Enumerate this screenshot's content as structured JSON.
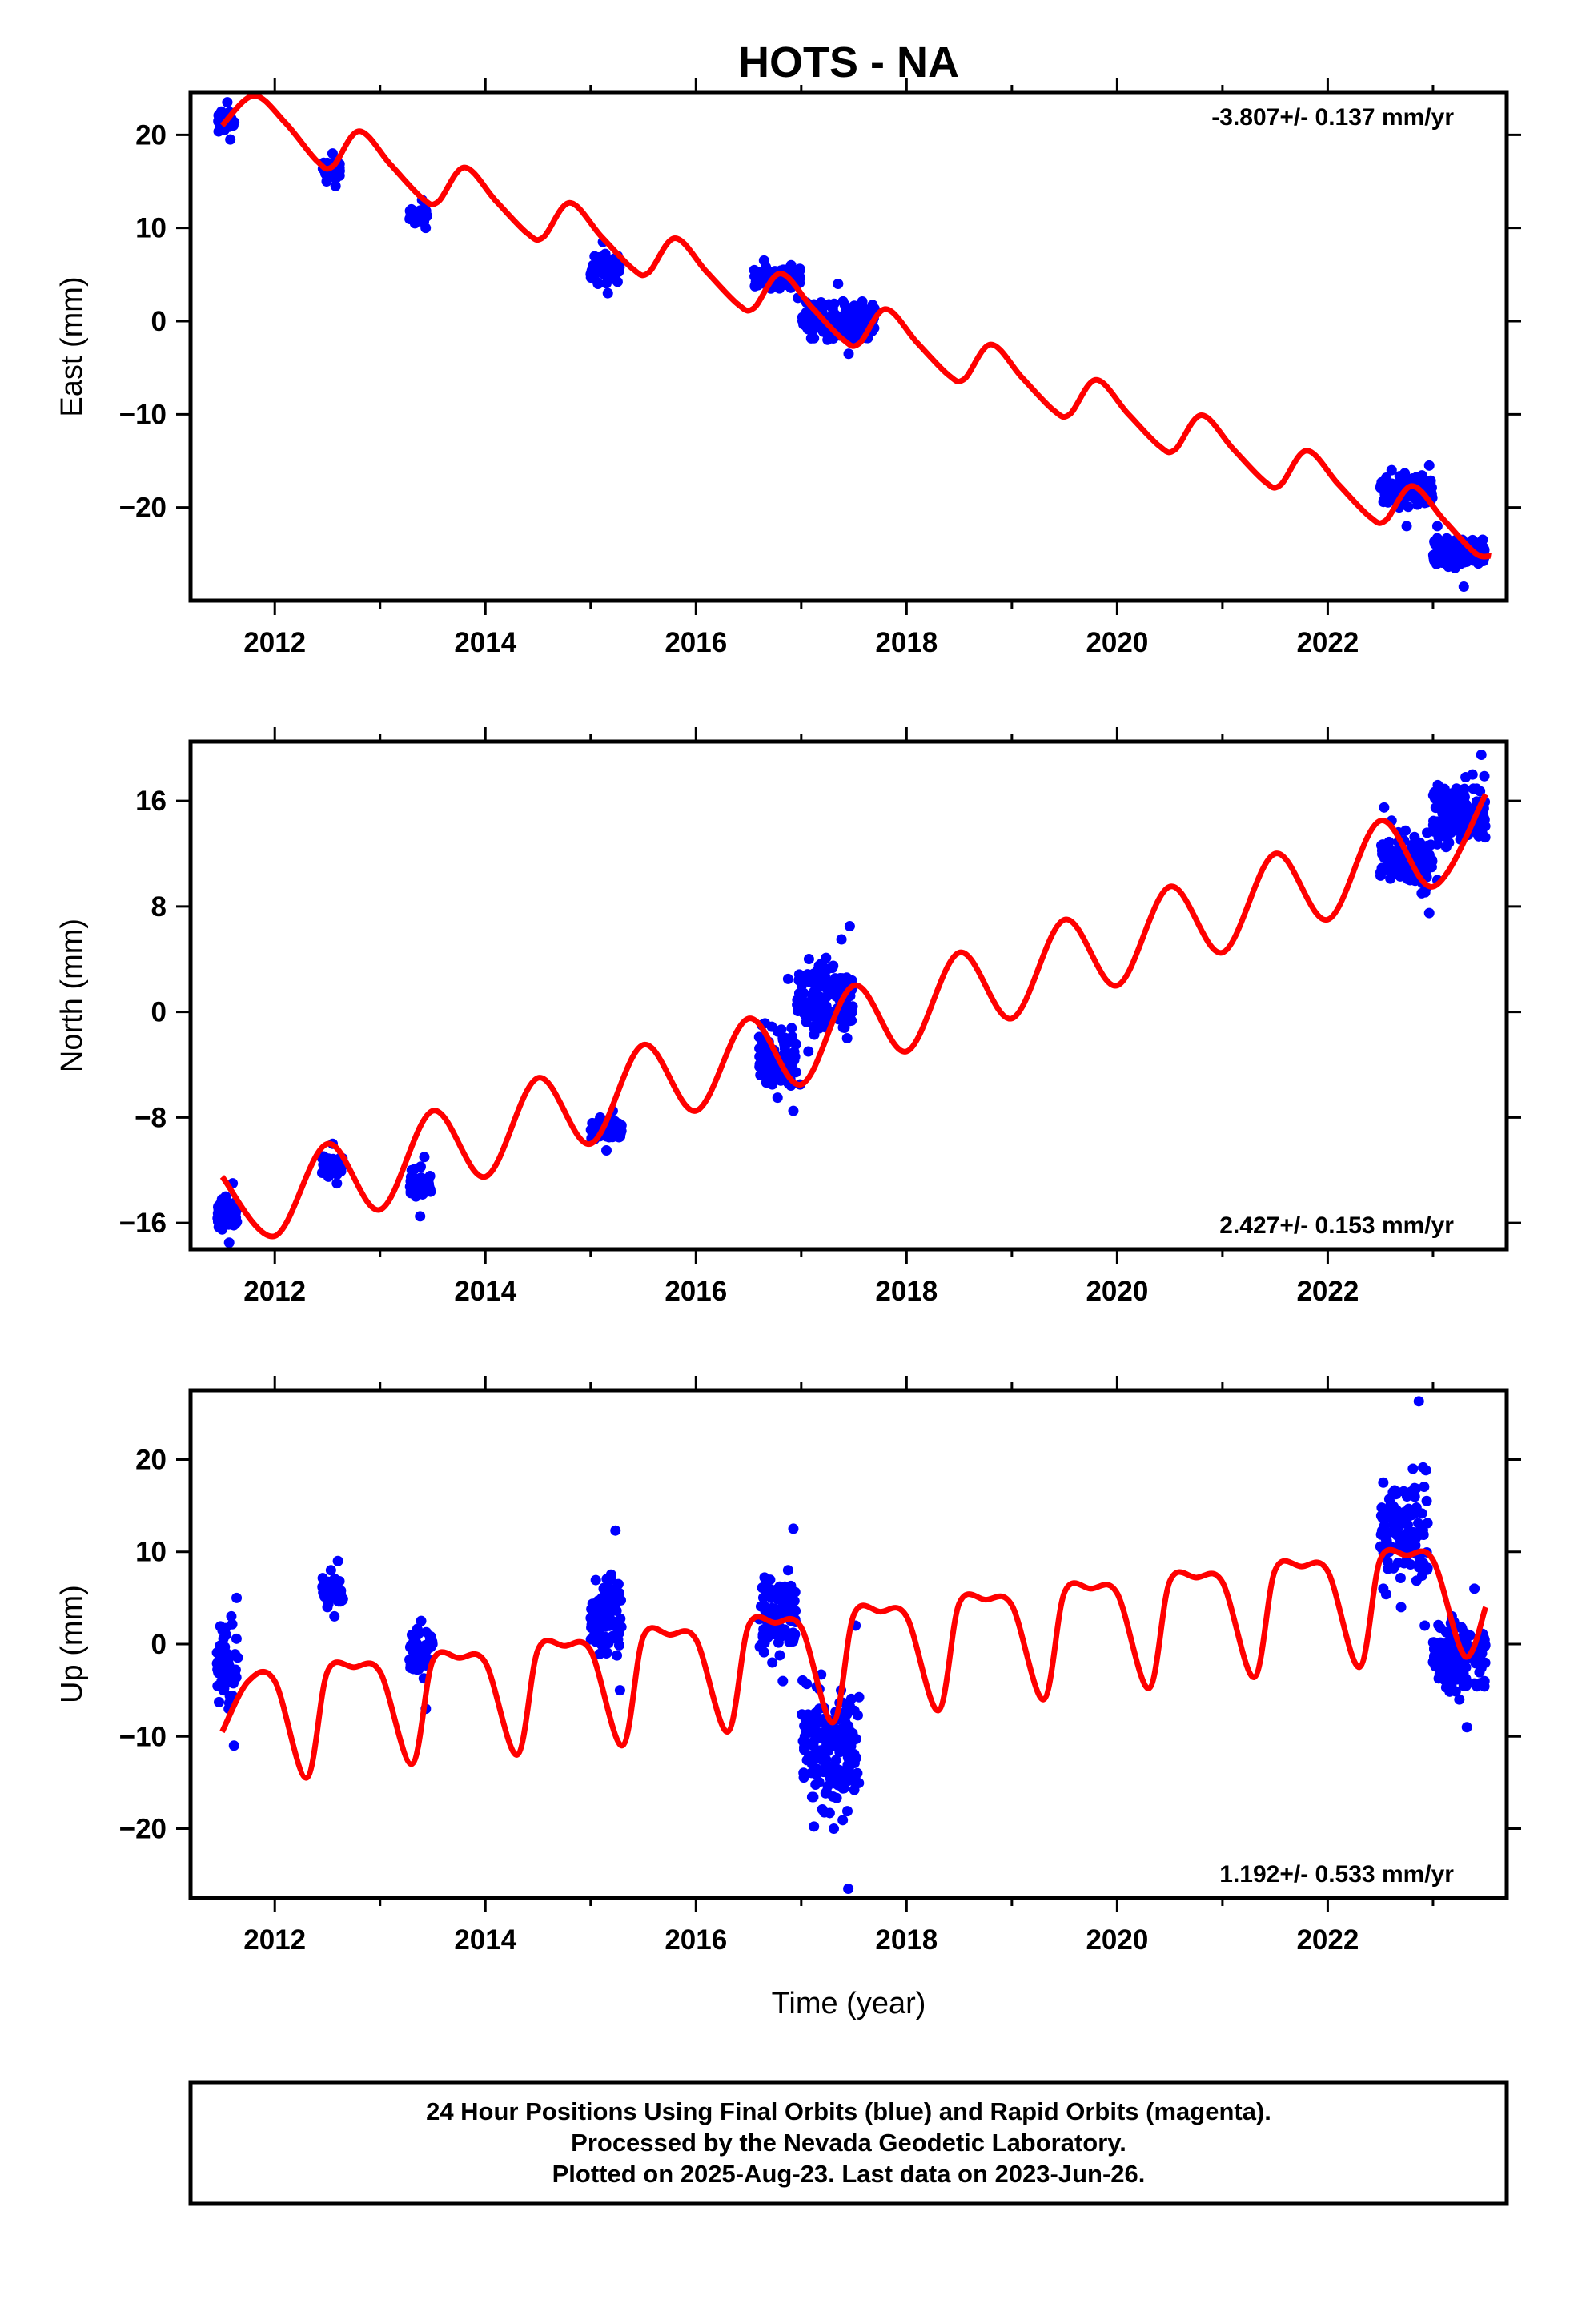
{
  "title": "HOTS - NA",
  "caption": {
    "line1": "24 Hour Positions Using Final Orbits (blue) and Rapid Orbits (magenta).",
    "line2": "Processed by the Nevada Geodetic Laboratory.",
    "line3": "Plotted on 2025-Aug-23. Last data on 2023-Jun-26."
  },
  "colors": {
    "observations": "#0000ff",
    "model": "#ff0000",
    "frame": "#000000"
  },
  "chart_data": [
    {
      "type": "scatter",
      "title": "HOTS - NA",
      "ylabel": "East (mm)",
      "xlabel": "",
      "xlim": [
        2011.2,
        2023.7
      ],
      "ylim": [
        -30.0,
        24.5
      ],
      "xticks": [
        2012,
        2014,
        2016,
        2018,
        2020,
        2022
      ],
      "yticks": [
        20,
        10,
        0,
        -10,
        -20
      ],
      "rate_label": "-3.807+/- 0.137 mm/yr",
      "rate_position": "top-right",
      "series": [
        {
          "name": "Final Orbits (blue)",
          "kind": "points",
          "clusters": [
            {
              "t": [
                2011.45,
                2011.62
              ],
              "values": [
                21.5,
                22.5,
                20.5,
                23.5,
                19.5,
                21.0
              ]
            },
            {
              "t": [
                2012.45,
                2012.62
              ],
              "values": [
                17.0,
                15.0,
                16.5,
                18.0,
                14.5,
                16.0
              ]
            },
            {
              "t": [
                2013.28,
                2013.45
              ],
              "values": [
                12.0,
                10.5,
                11.5,
                13.0,
                10.0
              ]
            },
            {
              "t": [
                2015.0,
                2015.28
              ],
              "values": [
                6.0,
                4.0,
                8.5,
                3.0,
                5.5,
                7.0
              ]
            },
            {
              "t": [
                2016.55,
                2017.0
              ],
              "values": [
                5.0,
                6.5,
                3.5,
                4.0,
                5.5,
                6.0,
                2.5
              ]
            },
            {
              "t": [
                2017.0,
                2017.7
              ],
              "values": [
                2.0,
                0.0,
                -2.0,
                4.0,
                -3.5,
                1.0,
                -1.0
              ]
            },
            {
              "t": [
                2022.5,
                2023.0
              ],
              "values": [
                -18.0,
                -16.0,
                -20.0,
                -22.0,
                -19.0,
                -17.5,
                -15.5
              ]
            },
            {
              "t": [
                2023.0,
                2023.5
              ],
              "values": [
                -22.0,
                -24.5,
                -26.5,
                -28.5,
                -23.5,
                -25.0
              ]
            }
          ]
        },
        {
          "name": "Model",
          "kind": "line",
          "x": [
            2011.5,
            2011.8,
            2012.1,
            2012.4,
            2012.55,
            2012.8,
            2013.1,
            2013.4,
            2013.55,
            2013.8,
            2014.1,
            2014.4,
            2014.55,
            2014.8,
            2015.1,
            2015.4,
            2015.55,
            2015.8,
            2016.1,
            2016.4,
            2016.55,
            2016.8,
            2017.1,
            2017.4,
            2017.55,
            2017.8,
            2018.1,
            2018.4,
            2018.55,
            2018.8,
            2019.1,
            2019.4,
            2019.55,
            2019.8,
            2020.1,
            2020.4,
            2020.55,
            2020.8,
            2021.1,
            2021.4,
            2021.55,
            2021.8,
            2022.1,
            2022.4,
            2022.55,
            2022.8,
            2023.1,
            2023.4,
            2023.55
          ],
          "values": [
            21.0,
            24.2,
            21.3,
            17.2,
            16.6,
            20.4,
            16.8,
            13.2,
            12.8,
            16.5,
            12.9,
            9.4,
            9.0,
            12.7,
            9.1,
            5.6,
            5.2,
            8.9,
            5.3,
            1.8,
            1.4,
            5.1,
            1.5,
            -2.0,
            -2.4,
            1.3,
            -2.3,
            -5.8,
            -6.2,
            -2.5,
            -6.1,
            -9.6,
            -10.0,
            -6.3,
            -9.9,
            -13.4,
            -13.8,
            -10.1,
            -13.7,
            -17.2,
            -17.6,
            -13.9,
            -17.5,
            -21.0,
            -21.4,
            -17.7,
            -21.3,
            -24.9,
            -25.2
          ]
        }
      ]
    },
    {
      "type": "scatter",
      "ylabel": "North (mm)",
      "xlabel": "",
      "xlim": [
        2011.2,
        2023.7
      ],
      "ylim": [
        -18.0,
        20.5
      ],
      "xticks": [
        2012,
        2014,
        2016,
        2018,
        2020,
        2022
      ],
      "yticks": [
        16,
        8,
        0,
        -8,
        -16
      ],
      "rate_label": "2.427+/- 0.153 mm/yr",
      "rate_position": "bottom-right",
      "series": [
        {
          "name": "Final Orbits (blue)",
          "kind": "points",
          "clusters": [
            {
              "t": [
                2011.45,
                2011.65
              ],
              "values": [
                -15.0,
                -16.5,
                -14.0,
                -17.5,
                -13.0,
                -16.0
              ]
            },
            {
              "t": [
                2012.45,
                2012.65
              ],
              "values": [
                -11.0,
                -12.5,
                -10.0,
                -13.0,
                -11.5
              ]
            },
            {
              "t": [
                2013.28,
                2013.48
              ],
              "values": [
                -12.0,
                -14.0,
                -15.5,
                -11.0,
                -13.0
              ]
            },
            {
              "t": [
                2015.0,
                2015.3
              ],
              "values": [
                -9.0,
                -8.0,
                -10.5,
                -7.5,
                -9.5
              ]
            },
            {
              "t": [
                2016.6,
                2016.95
              ],
              "values": [
                -1.0,
                -3.5,
                -5.5,
                -6.5,
                -2.0,
                2.5,
                -7.5
              ]
            },
            {
              "t": [
                2016.95,
                2017.5
              ],
              "values": [
                -5.5,
                -3.0,
                -1.0,
                1.0,
                3.5,
                5.5,
                6.5
              ]
            },
            {
              "t": [
                2022.5,
                2023.0
              ],
              "values": [
                15.5,
                14.5,
                12.0,
                10.5,
                11.5,
                9.0,
                7.5
              ]
            },
            {
              "t": [
                2023.0,
                2023.5
              ],
              "values": [
                10.0,
                12.5,
                14.5,
                16.5,
                18.0,
                19.5
              ]
            }
          ]
        },
        {
          "name": "Model",
          "kind": "line",
          "x": [
            2011.5,
            2012.0,
            2012.5,
            2013.0,
            2013.5,
            2014.0,
            2014.5,
            2015.0,
            2015.5,
            2016.0,
            2016.5,
            2017.0,
            2017.5,
            2018.0,
            2018.5,
            2019.0,
            2019.5,
            2020.0,
            2020.5,
            2021.0,
            2021.5,
            2022.0,
            2022.5,
            2023.0,
            2023.5
          ],
          "values": [
            -12.5,
            -17.0,
            -10.0,
            -15.0,
            -7.5,
            -12.5,
            -5.0,
            -10.0,
            -2.5,
            -7.5,
            -0.5,
            -5.5,
            2.0,
            -3.0,
            4.5,
            -0.5,
            7.0,
            2.0,
            9.5,
            4.5,
            12.0,
            7.0,
            14.5,
            9.5,
            16.5
          ]
        }
      ]
    },
    {
      "type": "scatter",
      "ylabel": "Up (mm)",
      "xlabel": "Time (year)",
      "xlim": [
        2011.2,
        2023.7
      ],
      "ylim": [
        -27.5,
        27.5
      ],
      "xticks": [
        2012,
        2014,
        2016,
        2018,
        2020,
        2022
      ],
      "yticks": [
        20,
        10,
        0,
        -10,
        -20
      ],
      "rate_label": "1.192+/- 0.533 mm/yr",
      "rate_position": "bottom-right",
      "series": [
        {
          "name": "Final Orbits (blue)",
          "kind": "points",
          "clusters": [
            {
              "t": [
                2011.45,
                2011.65
              ],
              "values": [
                -3.0,
                -1.0,
                -5.0,
                1.0,
                -7.0,
                3.0,
                -11.0,
                5.0
              ]
            },
            {
              "t": [
                2012.45,
                2012.65
              ],
              "values": [
                6.0,
                4.0,
                8.0,
                3.0,
                9.0,
                5.0
              ]
            },
            {
              "t": [
                2013.28,
                2013.5
              ],
              "values": [
                1.0,
                -1.0,
                2.5,
                -7.0,
                0.5
              ]
            },
            {
              "t": [
                2015.0,
                2015.3
              ],
              "values": [
                3.0,
                1.0,
                5.0,
                -1.0,
                7.0,
                12.3,
                -5.0
              ]
            },
            {
              "t": [
                2016.6,
                2016.95
              ],
              "values": [
                0.0,
                3.0,
                -2.0,
                5.0,
                -4.0,
                8.0,
                12.5
              ]
            },
            {
              "t": [
                2017.0,
                2017.55
              ],
              "values": [
                -10.0,
                -13.0,
                -7.0,
                -16.0,
                -20.0,
                -5.0,
                -26.5,
                2.0
              ]
            },
            {
              "t": [
                2022.5,
                2022.95
              ],
              "values": [
                6.0,
                10.0,
                14.0,
                4.0,
                16.0,
                19.0,
                26.3,
                2.0
              ]
            },
            {
              "t": [
                2023.0,
                2023.5
              ],
              "values": [
                0.0,
                -3.0,
                3.0,
                -6.0,
                -9.0,
                6.0,
                -1.0
              ]
            }
          ]
        },
        {
          "name": "Model",
          "kind": "line",
          "x": [
            2011.5,
            2011.75,
            2012.0,
            2012.3,
            2012.5,
            2012.75,
            2013.0,
            2013.3,
            2013.5,
            2013.75,
            2014.0,
            2014.3,
            2014.5,
            2014.75,
            2015.0,
            2015.3,
            2015.5,
            2015.75,
            2016.0,
            2016.3,
            2016.5,
            2016.75,
            2017.0,
            2017.3,
            2017.5,
            2017.75,
            2018.0,
            2018.3,
            2018.5,
            2018.75,
            2019.0,
            2019.3,
            2019.5,
            2019.75,
            2020.0,
            2020.3,
            2020.5,
            2020.75,
            2021.0,
            2021.3,
            2021.5,
            2021.75,
            2022.0,
            2022.3,
            2022.5,
            2022.75,
            2023.0,
            2023.3,
            2023.5
          ],
          "values": [
            -9.5,
            -4.0,
            -4.0,
            -14.5,
            -3.0,
            -2.5,
            -3.0,
            -13.0,
            -1.8,
            -1.5,
            -2.0,
            -12.0,
            -0.6,
            -0.2,
            -0.7,
            -11.0,
            0.8,
            1.0,
            0.5,
            -9.5,
            2.0,
            2.3,
            1.8,
            -8.5,
            3.2,
            3.5,
            3.0,
            -7.2,
            4.4,
            4.8,
            4.2,
            -6.0,
            5.6,
            6.0,
            5.5,
            -4.8,
            6.8,
            7.2,
            6.7,
            -3.6,
            8.0,
            8.4,
            7.9,
            -2.5,
            9.2,
            9.6,
            9.1,
            -1.3,
            4.0
          ]
        }
      ]
    }
  ]
}
